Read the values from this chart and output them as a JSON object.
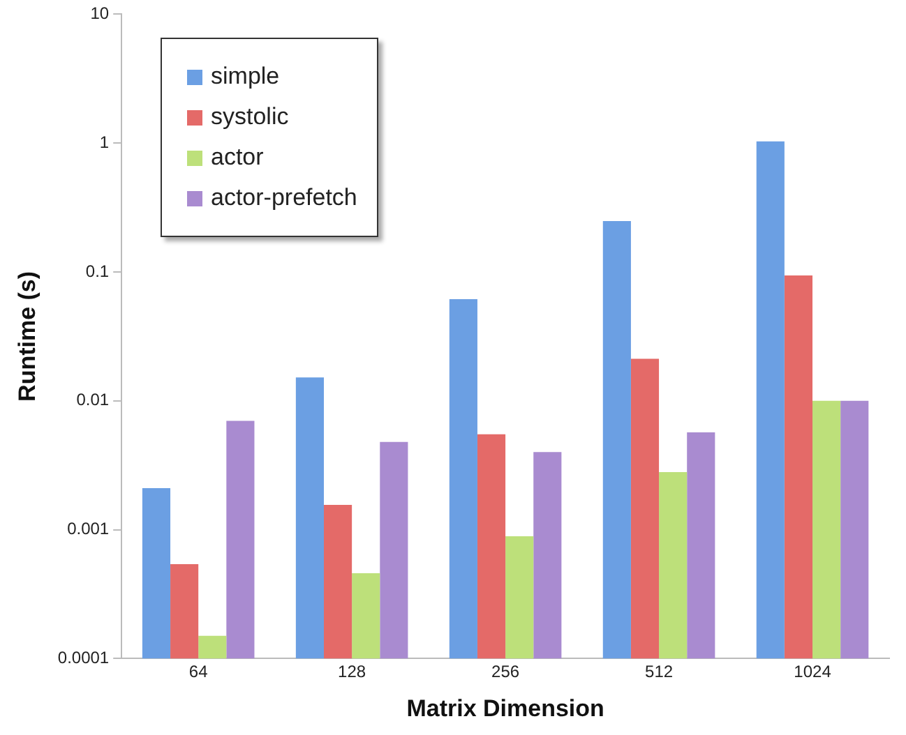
{
  "chart_data": {
    "type": "bar",
    "xlabel": "Matrix Dimension",
    "ylabel": "Runtime (s)",
    "categories": [
      "64",
      "128",
      "256",
      "512",
      "1024"
    ],
    "series": [
      {
        "name": "simple",
        "color": "#6b9fe3",
        "values": [
          0.0021,
          0.0152,
          0.0615,
          0.248,
          1.03
        ]
      },
      {
        "name": "systolic",
        "color": "#e46a68",
        "values": [
          0.00054,
          0.00156,
          0.0055,
          0.0212,
          0.094
        ]
      },
      {
        "name": "actor",
        "color": "#bde07a",
        "values": [
          0.00015,
          0.00046,
          0.00089,
          0.0028,
          0.01
        ]
      },
      {
        "name": "actor-prefetch",
        "color": "#a98bd0",
        "values": [
          0.007,
          0.0048,
          0.004,
          0.0057,
          0.01
        ]
      }
    ],
    "log": "y",
    "ylim": [
      0.0001,
      10
    ],
    "yticks": [
      0.0001,
      0.001,
      0.01,
      0.1,
      1,
      10
    ],
    "grid": false,
    "legend": "top left"
  }
}
